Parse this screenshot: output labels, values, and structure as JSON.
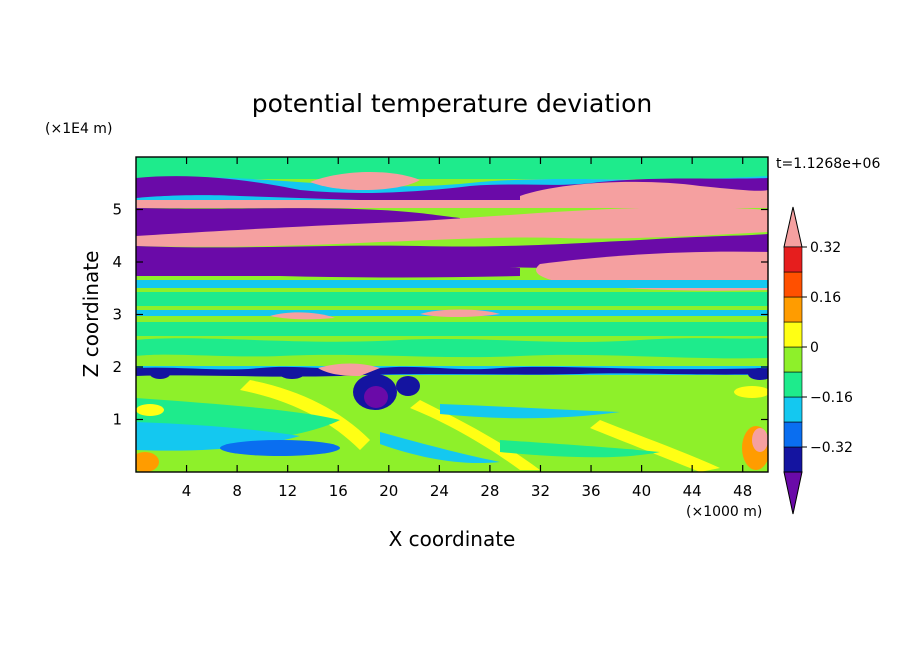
{
  "chart_data": {
    "type": "heatmap",
    "title": "potential temperature deviation",
    "xlabel": "X coordinate",
    "ylabel": "Z coordinate",
    "x_unit": "(×1000 m)",
    "y_unit": "(×1E4 m)",
    "time_label": "t=1.1268e+06",
    "x_ticks": [
      4,
      8,
      12,
      16,
      20,
      24,
      28,
      32,
      36,
      40,
      44,
      48
    ],
    "y_ticks": [
      1,
      2,
      3,
      4,
      5
    ],
    "xlim": [
      0,
      50
    ],
    "ylim": [
      0,
      6
    ],
    "colorbar": {
      "labels": [
        "0.32",
        "0.16",
        "0",
        "−0.16",
        "−0.32"
      ],
      "label_values": [
        0.32,
        0.16,
        0,
        -0.16,
        -0.32
      ],
      "levels": [
        -0.4,
        -0.32,
        -0.24,
        -0.16,
        -0.08,
        0,
        0.08,
        0.16,
        0.24,
        0.32,
        0.4
      ],
      "colors": [
        "#6a0aa8",
        "#1414a0",
        "#0a6ef0",
        "#14c8f0",
        "#1eeb8c",
        "#8ef02a",
        "#ffff14",
        "#ff9c00",
        "#ff5000",
        "#e61e1e",
        "#f5a0a0"
      ]
    },
    "bands": [
      {
        "y": [
          5.45,
          5.72
        ],
        "value": -0.4
      },
      {
        "y": [
          5.12,
          5.28
        ],
        "value": 0.4
      },
      {
        "y": [
          4.55,
          5.0
        ],
        "value": -0.4
      },
      {
        "y": [
          4.2,
          4.75
        ],
        "value": 0.4
      },
      {
        "y": [
          3.72,
          4.15
        ],
        "value": -0.4
      },
      {
        "y": [
          3.55,
          3.65
        ],
        "value": -0.16
      },
      {
        "y": [
          2.95,
          3.05
        ],
        "value": -0.16
      },
      {
        "y": [
          1.85,
          1.98
        ],
        "value": -0.32
      },
      {
        "y": [
          0.3,
          0.55
        ],
        "value": -0.16
      }
    ]
  }
}
